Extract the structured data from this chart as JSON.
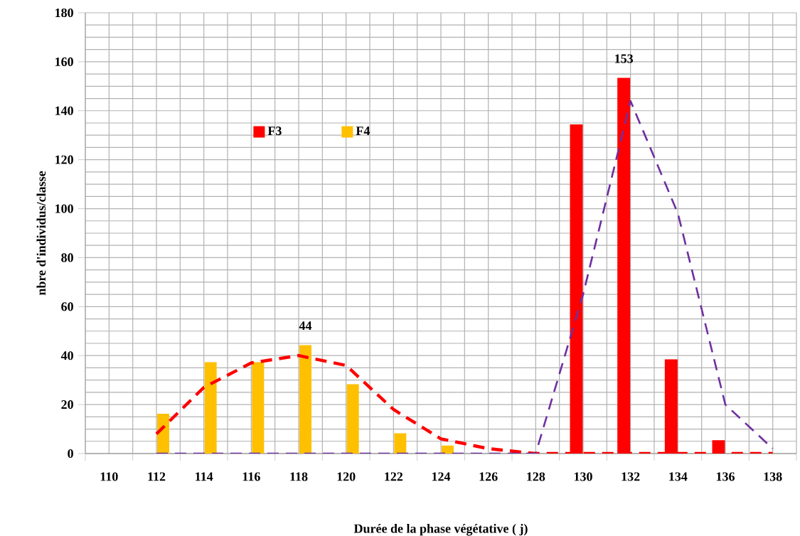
{
  "chart_data": {
    "type": "bar",
    "xlabel": "Durée de la phase végétative ( j)",
    "ylabel": "nbre d'individus/classe",
    "categories": [
      "110",
      "112",
      "114",
      "116",
      "118",
      "120",
      "122",
      "124",
      "126",
      "128",
      "130",
      "132",
      "134",
      "136",
      "138"
    ],
    "series": [
      {
        "name": "F3",
        "color": "#ff0000",
        "values": [
          null,
          null,
          null,
          null,
          null,
          null,
          null,
          null,
          null,
          null,
          134,
          153,
          38,
          5,
          null
        ],
        "value_labels": [
          null,
          null,
          null,
          null,
          null,
          null,
          null,
          null,
          null,
          null,
          null,
          "153",
          null,
          null,
          null
        ]
      },
      {
        "name": "F4",
        "color": "#ffc000",
        "values": [
          null,
          16,
          37,
          37,
          44,
          28,
          8,
          3,
          null,
          null,
          null,
          null,
          null,
          null,
          null
        ],
        "value_labels": [
          null,
          null,
          null,
          null,
          "44",
          null,
          null,
          null,
          null,
          null,
          null,
          null,
          null,
          null,
          null
        ]
      },
      {
        "type": "line",
        "color": "#ff0000",
        "line_style": "dashed",
        "values": [
          null,
          8,
          27,
          37,
          40,
          36,
          18,
          6,
          2,
          0,
          0,
          0,
          0,
          0,
          0
        ]
      },
      {
        "type": "line",
        "color": "#7030a0",
        "line_style": "dashed",
        "values": [
          null,
          0,
          0,
          0,
          0,
          0,
          0,
          0,
          0,
          0,
          65,
          144,
          98,
          20,
          2
        ]
      }
    ],
    "ylim": [
      0,
      180
    ],
    "yticks": [
      0,
      20,
      40,
      60,
      80,
      100,
      120,
      140,
      160,
      180
    ],
    "grid": true,
    "legend": "top left"
  }
}
